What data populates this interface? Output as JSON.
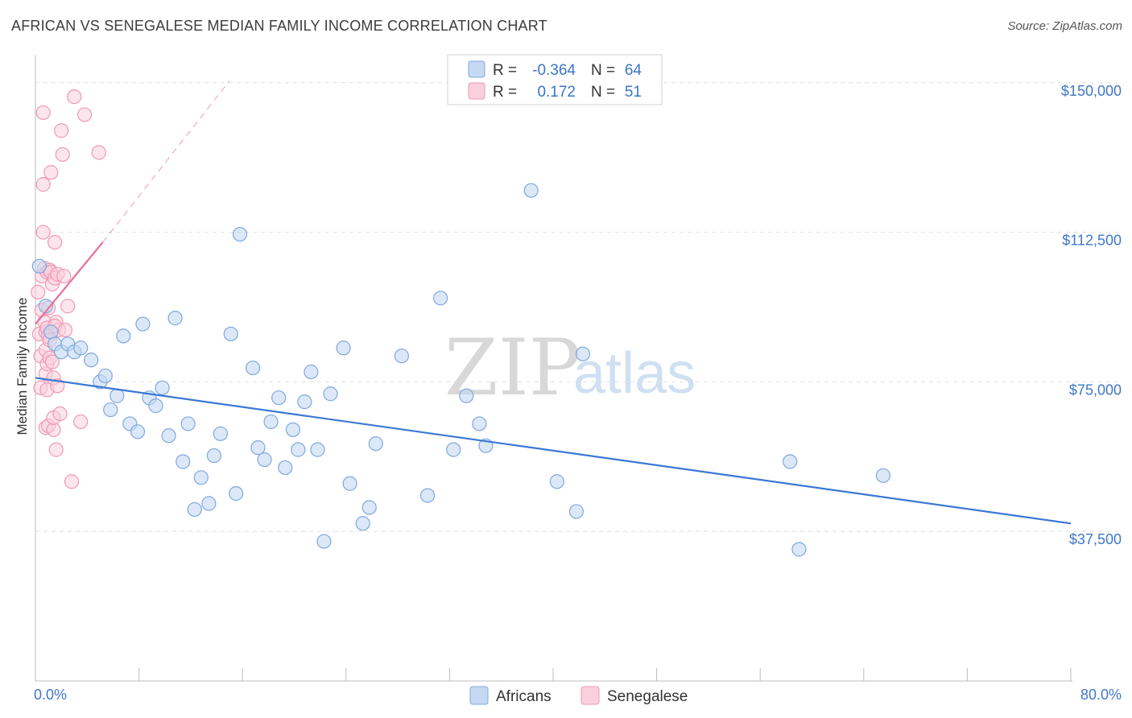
{
  "title": "AFRICAN VS SENEGALESE MEDIAN FAMILY INCOME CORRELATION CHART",
  "source": "Source: ZipAtlas.com",
  "watermark": {
    "zip": "ZIP",
    "atlas": "atlas"
  },
  "colors": {
    "africans_fill": "#c5d9f2",
    "africans_stroke": "#7fa8e0",
    "africans_line": "#3a78d4",
    "senegalese_fill": "#f9d0dc",
    "senegalese_stroke": "#ef9ab5",
    "senegalese_line": "#e8709a",
    "grid": "#e0e0e0",
    "tick_text": "#3f78c6"
  },
  "legend": {
    "rows": [
      {
        "r_label": "R =",
        "r_value": "-0.364",
        "n_label": "N =",
        "n_value": "64"
      },
      {
        "r_label": "R =",
        "r_value": "0.172",
        "n_label": "N =",
        "n_value": "51"
      }
    ]
  },
  "chart_data": {
    "type": "scatter",
    "title": "AFRICAN VS SENEGALESE MEDIAN FAMILY INCOME CORRELATION CHART",
    "xlabel": "",
    "ylabel": "Median Family Income",
    "xlim": [
      0,
      80
    ],
    "ylim": [
      0,
      155000
    ],
    "x_tick_labels": [
      "0.0%",
      "80.0%"
    ],
    "y_ticks": [
      37500,
      75000,
      112500,
      150000
    ],
    "y_tick_labels": [
      "$37,500",
      "$75,000",
      "$112,500",
      "$150,000"
    ],
    "series": [
      {
        "name": "Africans",
        "R": -0.364,
        "N": 64,
        "trend": {
          "x": [
            0,
            80
          ],
          "y": [
            76000,
            39500
          ],
          "style": "solid"
        },
        "points": [
          [
            0.3,
            104000
          ],
          [
            0.8,
            94000
          ],
          [
            1.2,
            87500
          ],
          [
            1.5,
            84500
          ],
          [
            2.0,
            82500
          ],
          [
            2.5,
            84500
          ],
          [
            3.0,
            82500
          ],
          [
            3.5,
            83500
          ],
          [
            4.3,
            80500
          ],
          [
            5.0,
            75000
          ],
          [
            5.4,
            76500
          ],
          [
            5.8,
            68000
          ],
          [
            6.3,
            71500
          ],
          [
            6.8,
            86500
          ],
          [
            7.3,
            64500
          ],
          [
            7.9,
            62500
          ],
          [
            8.3,
            89500
          ],
          [
            8.8,
            71000
          ],
          [
            9.3,
            69000
          ],
          [
            9.8,
            73500
          ],
          [
            10.3,
            61500
          ],
          [
            10.8,
            91000
          ],
          [
            11.4,
            55000
          ],
          [
            11.8,
            64500
          ],
          [
            12.3,
            43000
          ],
          [
            12.8,
            51000
          ],
          [
            13.4,
            44500
          ],
          [
            13.8,
            56500
          ],
          [
            14.3,
            62000
          ],
          [
            15.1,
            87000
          ],
          [
            15.5,
            47000
          ],
          [
            15.8,
            112000
          ],
          [
            16.8,
            78500
          ],
          [
            17.2,
            58500
          ],
          [
            17.7,
            55500
          ],
          [
            18.2,
            65000
          ],
          [
            18.8,
            71000
          ],
          [
            19.3,
            53500
          ],
          [
            19.9,
            63000
          ],
          [
            20.3,
            58000
          ],
          [
            20.8,
            70000
          ],
          [
            21.3,
            77500
          ],
          [
            21.8,
            58000
          ],
          [
            22.3,
            35000
          ],
          [
            22.8,
            72000
          ],
          [
            23.8,
            83500
          ],
          [
            24.3,
            49500
          ],
          [
            25.3,
            39500
          ],
          [
            25.8,
            43500
          ],
          [
            26.3,
            59500
          ],
          [
            28.3,
            81500
          ],
          [
            30.3,
            46500
          ],
          [
            31.3,
            96000
          ],
          [
            32.3,
            58000
          ],
          [
            33.3,
            71500
          ],
          [
            34.3,
            64500
          ],
          [
            34.8,
            59000
          ],
          [
            38.3,
            123000
          ],
          [
            40.3,
            50000
          ],
          [
            41.8,
            42500
          ],
          [
            42.3,
            82000
          ],
          [
            58.3,
            55000
          ],
          [
            59.0,
            33000
          ],
          [
            65.5,
            51500
          ]
        ]
      },
      {
        "name": "Senegalese",
        "R": 0.172,
        "N": 51,
        "trend": {
          "x": [
            0,
            5.2
          ],
          "y": [
            89500,
            110000
          ],
          "style": "solid",
          "extended": {
            "x": [
              5.2,
              15.0
            ],
            "y": [
              110000,
              150500
            ],
            "style": "dashed"
          }
        },
        "points": [
          [
            0.2,
            97500
          ],
          [
            0.3,
            87000
          ],
          [
            0.4,
            73500
          ],
          [
            0.4,
            81500
          ],
          [
            0.5,
            101500
          ],
          [
            0.5,
            93000
          ],
          [
            0.6,
            112500
          ],
          [
            0.6,
            124500
          ],
          [
            0.6,
            142500
          ],
          [
            0.7,
            103500
          ],
          [
            0.7,
            90000
          ],
          [
            0.8,
            87500
          ],
          [
            0.8,
            83000
          ],
          [
            0.8,
            77000
          ],
          [
            0.8,
            63500
          ],
          [
            0.9,
            102500
          ],
          [
            0.9,
            88500
          ],
          [
            0.9,
            79500
          ],
          [
            0.9,
            73000
          ],
          [
            1.0,
            64000
          ],
          [
            1.0,
            93500
          ],
          [
            1.0,
            86500
          ],
          [
            1.1,
            103000
          ],
          [
            1.1,
            85500
          ],
          [
            1.1,
            81000
          ],
          [
            1.2,
            127500
          ],
          [
            1.2,
            102500
          ],
          [
            1.3,
            99500
          ],
          [
            1.3,
            80000
          ],
          [
            1.4,
            76000
          ],
          [
            1.4,
            63000
          ],
          [
            1.4,
            66000
          ],
          [
            1.5,
            110000
          ],
          [
            1.5,
            101000
          ],
          [
            1.6,
            90000
          ],
          [
            1.6,
            58000
          ],
          [
            1.7,
            74000
          ],
          [
            1.8,
            88000
          ],
          [
            1.9,
            67000
          ],
          [
            1.7,
            102000
          ],
          [
            1.5,
            89000
          ],
          [
            2.0,
            138000
          ],
          [
            2.1,
            132000
          ],
          [
            2.2,
            101500
          ],
          [
            2.3,
            88000
          ],
          [
            2.5,
            94000
          ],
          [
            2.8,
            50000
          ],
          [
            3.0,
            146500
          ],
          [
            3.5,
            65000
          ],
          [
            3.8,
            142000
          ],
          [
            4.9,
            132500
          ]
        ]
      }
    ]
  },
  "bottom_legend": {
    "items": [
      {
        "label": "Africans"
      },
      {
        "label": "Senegalese"
      }
    ]
  }
}
